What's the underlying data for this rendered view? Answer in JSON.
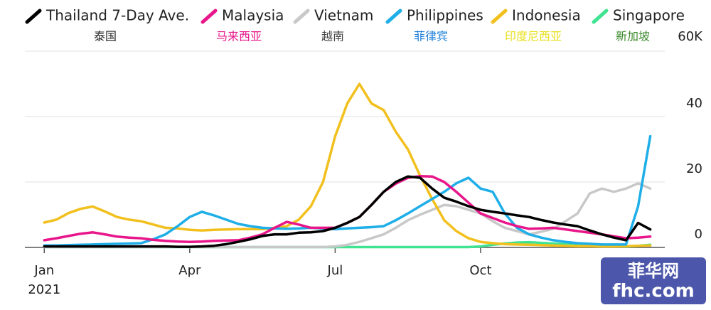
{
  "chart_data": {
    "type": "line",
    "x": [
      0,
      0.25,
      0.5,
      0.75,
      1,
      1.25,
      1.5,
      1.75,
      2,
      2.25,
      2.5,
      2.75,
      3,
      3.25,
      3.5,
      3.75,
      4,
      4.25,
      4.5,
      4.75,
      5,
      5.25,
      5.5,
      5.75,
      6,
      6.25,
      6.5,
      6.75,
      7,
      7.25,
      7.5,
      7.75,
      8,
      8.25,
      8.5,
      8.75,
      9,
      9.25,
      9.5,
      9.75,
      10,
      10.25,
      10.5,
      10.75,
      11,
      11.25,
      11.5,
      11.75,
      12,
      12.25,
      12.5
    ],
    "xlim": [
      -0.4,
      12.55
    ],
    "xticks": [
      {
        "value": 0,
        "label": "Jan"
      },
      {
        "value": 3,
        "label": "Apr"
      },
      {
        "value": 6,
        "label": "Jul"
      },
      {
        "value": 9,
        "label": "Oct"
      }
    ],
    "year_label": "2021",
    "ylim": [
      0,
      60
    ],
    "yticks": [
      0,
      20,
      40,
      {
        "value": 60,
        "label": "60K"
      }
    ],
    "grid": true,
    "series": [
      {
        "name": "Thailand 7-Day Ave.",
        "name_zh": "泰国",
        "color": "#000000",
        "values": [
          0.3,
          0.3,
          0.3,
          0.3,
          0.3,
          0.3,
          0.3,
          0.3,
          0.3,
          0.3,
          0.3,
          0.2,
          0.2,
          0.3,
          0.5,
          1,
          1.7,
          2.5,
          3.5,
          4,
          4,
          4.5,
          4.6,
          5,
          6,
          7.5,
          9.3,
          13,
          17,
          20,
          21.7,
          21.3,
          18,
          15.2,
          14,
          12.6,
          11.5,
          10.9,
          10.4,
          9.8,
          9.3,
          8.4,
          7.6,
          7,
          6.5,
          5.2,
          4,
          3,
          2.2,
          7.5,
          5.5
        ]
      },
      {
        "name": "Malaysia",
        "name_zh": "马来西亚",
        "color": "#e8168b",
        "values": [
          2.2,
          2.8,
          3.5,
          4.2,
          4.6,
          4,
          3.3,
          3,
          2.8,
          2.3,
          2,
          1.8,
          1.7,
          1.8,
          2,
          2.1,
          2.2,
          3,
          4,
          6,
          7.8,
          7,
          6,
          6,
          6,
          7.5,
          9.3,
          13,
          17,
          19.5,
          21.3,
          21.8,
          21.7,
          20,
          17,
          13.7,
          10.4,
          9,
          7.6,
          6.5,
          5.7,
          5.8,
          6,
          5.5,
          5,
          4.5,
          4,
          3.4,
          2.8,
          3,
          3.3
        ]
      },
      {
        "name": "Vietnam",
        "name_zh": "越南",
        "color": "#c8c8c8",
        "values": [
          0.1,
          0.1,
          0.1,
          0.1,
          0.1,
          0.1,
          0.1,
          0.1,
          0.1,
          0.1,
          0.1,
          0.1,
          0.1,
          0.1,
          0.1,
          0.1,
          0.1,
          0.1,
          0.1,
          0.1,
          0.1,
          0.1,
          0.1,
          0.1,
          0.3,
          0.8,
          1.7,
          2.8,
          4,
          6,
          8.3,
          10,
          11.5,
          13,
          12.6,
          11.5,
          10.4,
          8,
          6,
          5,
          4,
          4.8,
          5.7,
          8,
          10.4,
          16.5,
          18,
          17,
          18,
          19.6,
          18
        ]
      },
      {
        "name": "Philippines",
        "name_zh": "菲律宾",
        "color": "#1eaee8",
        "values": [
          0.6,
          0.6,
          0.7,
          0.8,
          0.9,
          1,
          1.1,
          1.2,
          1.3,
          2.5,
          4,
          6.5,
          9.3,
          10.9,
          9.8,
          8.5,
          7.2,
          6.5,
          6,
          5.8,
          5.7,
          5.8,
          6,
          5.8,
          5.6,
          5.8,
          6,
          6.2,
          6.5,
          8.3,
          10.4,
          12.6,
          14.8,
          17,
          19.6,
          21.3,
          18,
          17,
          10.4,
          6,
          4,
          3,
          2.2,
          1.7,
          1.3,
          1.1,
          0.9,
          0.9,
          0.9,
          12.6,
          34
        ]
      },
      {
        "name": "Indonesia",
        "name_zh": "印度尼西亚",
        "color": "#f2c01e",
        "values": [
          7.6,
          8.5,
          10.5,
          11.8,
          12.5,
          11,
          9.3,
          8.5,
          8,
          7,
          6,
          5.8,
          5.4,
          5.2,
          5.4,
          5.5,
          5.6,
          5.6,
          5.6,
          6,
          6.5,
          8.5,
          12.6,
          20,
          34,
          44,
          50,
          44,
          42,
          35.4,
          30,
          22,
          14.8,
          8.3,
          5,
          2.8,
          1.7,
          1.3,
          1,
          0.9,
          0.8,
          0.7,
          0.6,
          0.5,
          0.4,
          0.4,
          0.3,
          0.3,
          0.4,
          0.5,
          0.6
        ]
      },
      {
        "name": "Singapore",
        "name_zh": "新加坡",
        "color": "#3fe391",
        "values": [
          0.1,
          0.1,
          0.1,
          0.1,
          0.1,
          0.1,
          0.1,
          0.1,
          0.1,
          0.1,
          0.1,
          0.1,
          0.1,
          0.1,
          0.1,
          0.1,
          0.1,
          0.1,
          0.1,
          0.1,
          0.1,
          0.1,
          0.1,
          0.1,
          0.1,
          0.1,
          0.1,
          0.1,
          0.1,
          0.1,
          0.1,
          0.1,
          0.1,
          0.1,
          0.1,
          0.1,
          0.3,
          0.8,
          1.2,
          1.5,
          1.6,
          1.4,
          1.2,
          1,
          0.8,
          0.6,
          0.5,
          0.4,
          0.3,
          0.5,
          0.8
        ]
      }
    ]
  },
  "watermark": {
    "title": "菲华网",
    "site": "fhc.com"
  }
}
